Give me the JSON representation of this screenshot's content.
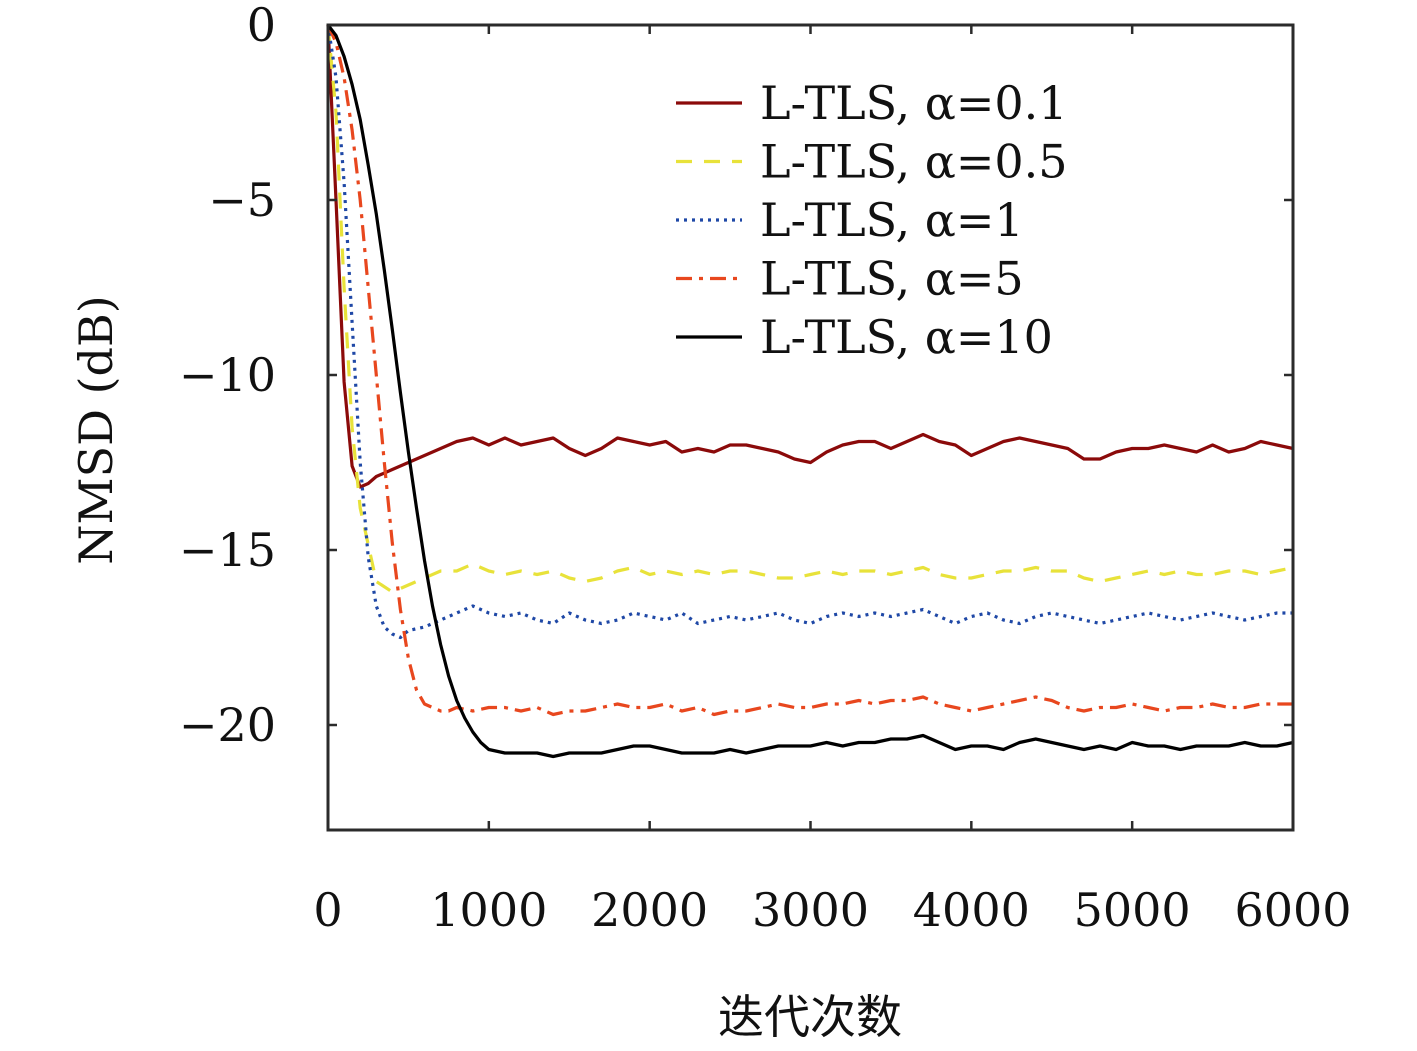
{
  "chart_data": {
    "type": "line",
    "title": "",
    "xlabel": "迭代次数",
    "ylabel": "NMSD (dB)",
    "xlim": [
      0,
      6000
    ],
    "ylim": [
      -23,
      0
    ],
    "xticks": [
      0,
      1000,
      2000,
      3000,
      4000,
      5000,
      6000
    ],
    "xtick_labels": [
      "0",
      "1000",
      "2000",
      "3000",
      "4000",
      "5000",
      "6000"
    ],
    "yticks": [
      0,
      -5,
      -10,
      -15,
      -20
    ],
    "ytick_labels": [
      "0",
      "−5",
      "−10",
      "−15",
      "−20"
    ],
    "grid": false,
    "legend_position": "top-right",
    "series": [
      {
        "name": "L-TLS, α=0.1",
        "color": "#8B0A0A",
        "dash": "solid",
        "x": [
          0,
          50,
          100,
          150,
          200,
          250,
          300,
          400,
          500,
          600,
          700,
          800,
          900,
          1000,
          1100,
          1200,
          1300,
          1400,
          1500,
          1600,
          1700,
          1800,
          1900,
          2000,
          2100,
          2200,
          2300,
          2400,
          2500,
          2600,
          2700,
          2800,
          2900,
          3000,
          3100,
          3200,
          3300,
          3400,
          3500,
          3600,
          3700,
          3800,
          3900,
          4000,
          4100,
          4200,
          4300,
          4400,
          4500,
          4600,
          4700,
          4800,
          4900,
          5000,
          5100,
          5200,
          5300,
          5400,
          5500,
          5600,
          5700,
          5800,
          5900,
          6000
        ],
        "y": [
          0,
          -5,
          -10.2,
          -12.6,
          -13.2,
          -13.1,
          -12.9,
          -12.7,
          -12.5,
          -12.3,
          -12.1,
          -11.9,
          -11.8,
          -12.0,
          -11.8,
          -12.0,
          -11.9,
          -11.8,
          -12.1,
          -12.3,
          -12.1,
          -11.8,
          -11.9,
          -12.0,
          -11.9,
          -12.2,
          -12.1,
          -12.2,
          -12.0,
          -12.0,
          -12.1,
          -12.2,
          -12.4,
          -12.5,
          -12.2,
          -12.0,
          -11.9,
          -11.9,
          -12.1,
          -11.9,
          -11.7,
          -11.9,
          -12.0,
          -12.3,
          -12.1,
          -11.9,
          -11.8,
          -11.9,
          -12.0,
          -12.1,
          -12.4,
          -12.4,
          -12.2,
          -12.1,
          -12.1,
          -12.0,
          -12.1,
          -12.2,
          -12.0,
          -12.2,
          -12.1,
          -11.9,
          -12.0,
          -12.1
        ]
      },
      {
        "name": "L-TLS, α=0.5",
        "color": "#E8E23A",
        "dash": "dashed",
        "x": [
          0,
          50,
          100,
          150,
          200,
          300,
          400,
          500,
          600,
          700,
          800,
          900,
          1000,
          1100,
          1200,
          1300,
          1400,
          1500,
          1600,
          1700,
          1800,
          1900,
          2000,
          2100,
          2200,
          2300,
          2400,
          2500,
          2600,
          2700,
          2800,
          2900,
          3000,
          3100,
          3200,
          3300,
          3400,
          3500,
          3600,
          3700,
          3800,
          3900,
          4000,
          4100,
          4200,
          4300,
          4400,
          4500,
          4600,
          4700,
          4800,
          4900,
          5000,
          5100,
          5200,
          5300,
          5400,
          5500,
          5600,
          5700,
          5800,
          5900,
          6000
        ],
        "y": [
          0,
          -2.5,
          -7.5,
          -11.5,
          -13.8,
          -15.9,
          -16.2,
          -16.0,
          -15.8,
          -15.6,
          -15.6,
          -15.4,
          -15.6,
          -15.7,
          -15.6,
          -15.7,
          -15.6,
          -15.8,
          -15.9,
          -15.8,
          -15.6,
          -15.5,
          -15.7,
          -15.6,
          -15.7,
          -15.6,
          -15.7,
          -15.6,
          -15.6,
          -15.7,
          -15.8,
          -15.8,
          -15.7,
          -15.6,
          -15.7,
          -15.6,
          -15.6,
          -15.7,
          -15.6,
          -15.5,
          -15.7,
          -15.8,
          -15.8,
          -15.7,
          -15.6,
          -15.6,
          -15.5,
          -15.6,
          -15.6,
          -15.8,
          -15.9,
          -15.8,
          -15.7,
          -15.6,
          -15.7,
          -15.6,
          -15.7,
          -15.7,
          -15.6,
          -15.6,
          -15.7,
          -15.6,
          -15.5
        ]
      },
      {
        "name": "L-TLS, α=1",
        "color": "#1F48A6",
        "dash": "dotted",
        "x": [
          0,
          50,
          100,
          150,
          200,
          250,
          300,
          350,
          400,
          450,
          500,
          600,
          700,
          800,
          900,
          1000,
          1100,
          1200,
          1300,
          1400,
          1500,
          1600,
          1700,
          1800,
          1900,
          2000,
          2100,
          2200,
          2300,
          2400,
          2500,
          2600,
          2700,
          2800,
          2900,
          3000,
          3100,
          3200,
          3300,
          3400,
          3500,
          3600,
          3700,
          3800,
          3900,
          4000,
          4100,
          4200,
          4300,
          4400,
          4500,
          4600,
          4700,
          4800,
          4900,
          5000,
          5100,
          5200,
          5300,
          5400,
          5500,
          5600,
          5700,
          5800,
          5900,
          6000
        ],
        "y": [
          0,
          -1.5,
          -4.5,
          -8.5,
          -12.5,
          -15.2,
          -16.6,
          -17.2,
          -17.4,
          -17.5,
          -17.3,
          -17.2,
          -17.0,
          -16.8,
          -16.6,
          -16.8,
          -16.9,
          -16.8,
          -17.0,
          -17.1,
          -16.8,
          -17.0,
          -17.1,
          -17.0,
          -16.8,
          -16.9,
          -17.0,
          -16.8,
          -17.1,
          -17.0,
          -16.9,
          -17.0,
          -16.9,
          -16.8,
          -17.0,
          -17.1,
          -16.9,
          -16.8,
          -16.9,
          -16.8,
          -16.9,
          -16.8,
          -16.7,
          -16.9,
          -17.1,
          -16.9,
          -16.8,
          -17.0,
          -17.1,
          -16.9,
          -16.8,
          -16.9,
          -17.0,
          -17.1,
          -17.0,
          -16.9,
          -16.8,
          -16.9,
          -17.0,
          -16.9,
          -16.8,
          -16.9,
          -17.0,
          -16.9,
          -16.8,
          -16.8
        ]
      },
      {
        "name": "L-TLS, α=5",
        "color": "#E8471E",
        "dash": "dashdot",
        "x": [
          0,
          50,
          100,
          150,
          200,
          250,
          300,
          350,
          400,
          450,
          500,
          550,
          600,
          650,
          700,
          750,
          800,
          900,
          1000,
          1100,
          1200,
          1300,
          1400,
          1500,
          1600,
          1700,
          1800,
          1900,
          2000,
          2100,
          2200,
          2300,
          2400,
          2500,
          2600,
          2700,
          2800,
          2900,
          3000,
          3100,
          3200,
          3300,
          3400,
          3500,
          3600,
          3700,
          3800,
          3900,
          4000,
          4100,
          4200,
          4300,
          4400,
          4500,
          4600,
          4700,
          4800,
          4900,
          5000,
          5100,
          5200,
          5300,
          5400,
          5500,
          5600,
          5700,
          5800,
          5900,
          6000
        ],
        "y": [
          0,
          -0.5,
          -1.5,
          -3.0,
          -5.0,
          -7.5,
          -10.0,
          -12.5,
          -14.8,
          -16.7,
          -18.1,
          -19.0,
          -19.4,
          -19.5,
          -19.6,
          -19.6,
          -19.5,
          -19.6,
          -19.5,
          -19.5,
          -19.6,
          -19.5,
          -19.7,
          -19.6,
          -19.6,
          -19.5,
          -19.4,
          -19.5,
          -19.5,
          -19.4,
          -19.6,
          -19.5,
          -19.7,
          -19.6,
          -19.6,
          -19.5,
          -19.4,
          -19.5,
          -19.5,
          -19.4,
          -19.4,
          -19.3,
          -19.4,
          -19.3,
          -19.3,
          -19.2,
          -19.4,
          -19.5,
          -19.6,
          -19.5,
          -19.4,
          -19.3,
          -19.2,
          -19.3,
          -19.5,
          -19.6,
          -19.5,
          -19.5,
          -19.4,
          -19.5,
          -19.6,
          -19.5,
          -19.5,
          -19.4,
          -19.5,
          -19.5,
          -19.4,
          -19.4,
          -19.4
        ]
      },
      {
        "name": "L-TLS, α=10",
        "color": "#000000",
        "dash": "solid",
        "x": [
          0,
          50,
          100,
          150,
          200,
          250,
          300,
          350,
          400,
          450,
          500,
          550,
          600,
          650,
          700,
          750,
          800,
          850,
          900,
          950,
          1000,
          1100,
          1200,
          1300,
          1400,
          1500,
          1600,
          1700,
          1800,
          1900,
          2000,
          2100,
          2200,
          2300,
          2400,
          2500,
          2600,
          2700,
          2800,
          2900,
          3000,
          3100,
          3200,
          3300,
          3400,
          3500,
          3600,
          3700,
          3800,
          3900,
          4000,
          4100,
          4200,
          4300,
          4400,
          4500,
          4600,
          4700,
          4800,
          4900,
          5000,
          5100,
          5200,
          5300,
          5400,
          5500,
          5600,
          5700,
          5800,
          5900,
          6000
        ],
        "y": [
          0,
          -0.3,
          -0.9,
          -1.7,
          -2.7,
          -4.0,
          -5.4,
          -7.0,
          -8.7,
          -10.5,
          -12.2,
          -13.8,
          -15.3,
          -16.6,
          -17.7,
          -18.6,
          -19.3,
          -19.8,
          -20.2,
          -20.5,
          -20.7,
          -20.8,
          -20.8,
          -20.8,
          -20.9,
          -20.8,
          -20.8,
          -20.8,
          -20.7,
          -20.6,
          -20.6,
          -20.7,
          -20.8,
          -20.8,
          -20.8,
          -20.7,
          -20.8,
          -20.7,
          -20.6,
          -20.6,
          -20.6,
          -20.5,
          -20.6,
          -20.5,
          -20.5,
          -20.4,
          -20.4,
          -20.3,
          -20.5,
          -20.7,
          -20.6,
          -20.6,
          -20.7,
          -20.5,
          -20.4,
          -20.5,
          -20.6,
          -20.7,
          -20.6,
          -20.7,
          -20.5,
          -20.6,
          -20.6,
          -20.7,
          -20.6,
          -20.6,
          -20.6,
          -20.5,
          -20.6,
          -20.6,
          -20.5
        ]
      }
    ]
  }
}
